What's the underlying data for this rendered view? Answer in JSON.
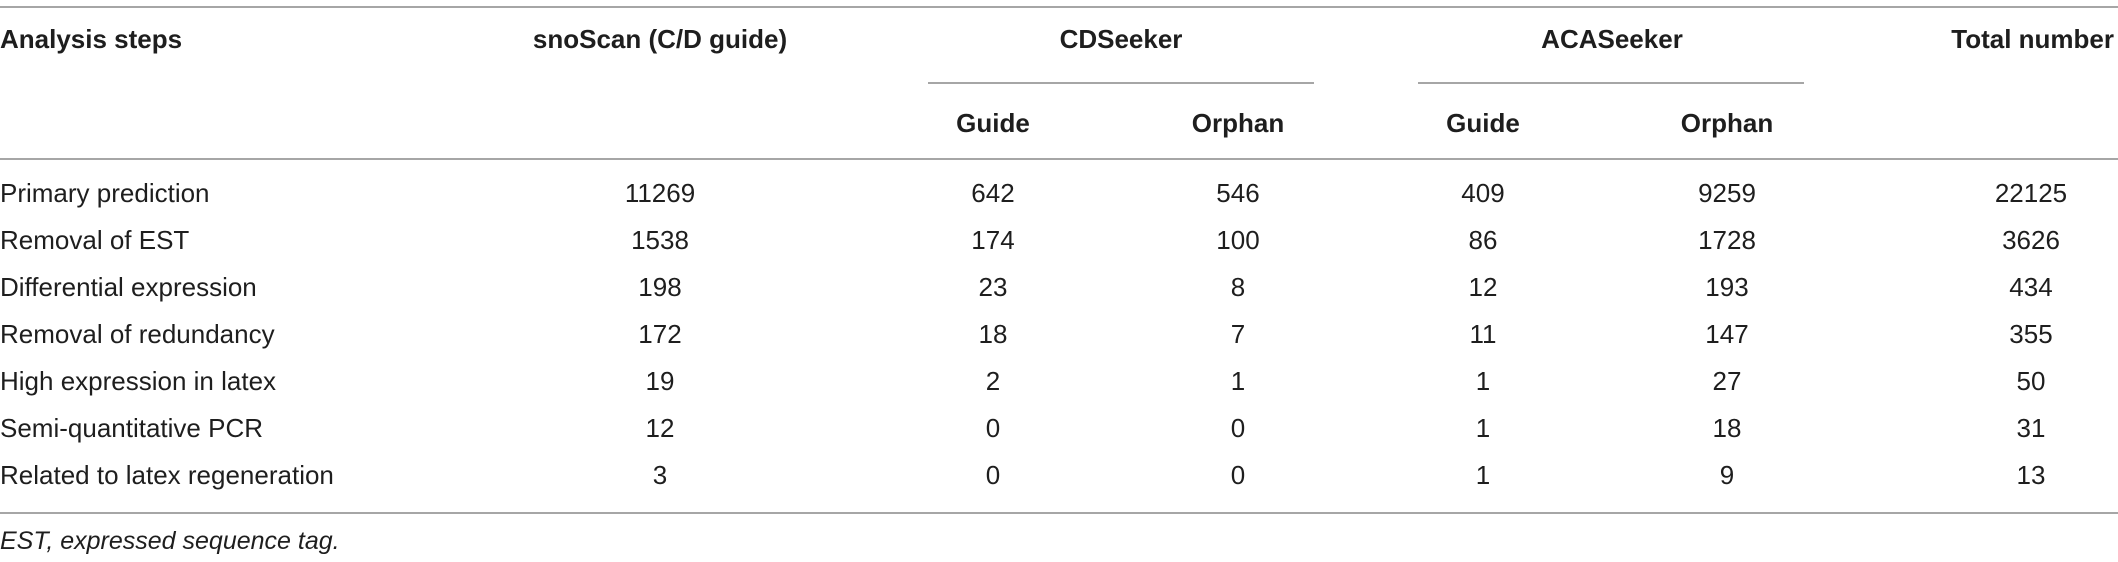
{
  "table": {
    "headers": {
      "analysis_steps": "Analysis steps",
      "snoscan": "snoScan (C/D guide)",
      "cdseeker": "CDSeeker",
      "acaseeker": "ACASeeker",
      "total": "Total number",
      "cd_guide": "Guide",
      "cd_orphan": "Orphan",
      "aca_guide": "Guide",
      "aca_orphan": "Orphan"
    },
    "rows": [
      {
        "step": "Primary prediction",
        "snoscan": "11269",
        "cd_guide": "642",
        "cd_orphan": "546",
        "aca_guide": "409",
        "aca_orphan": "9259",
        "total": "22125"
      },
      {
        "step": "Removal of EST",
        "snoscan": "1538",
        "cd_guide": "174",
        "cd_orphan": "100",
        "aca_guide": "86",
        "aca_orphan": "1728",
        "total": "3626"
      },
      {
        "step": "Differential expression",
        "snoscan": "198",
        "cd_guide": "23",
        "cd_orphan": "8",
        "aca_guide": "12",
        "aca_orphan": "193",
        "total": "434"
      },
      {
        "step": "Removal of redundancy",
        "snoscan": "172",
        "cd_guide": "18",
        "cd_orphan": "7",
        "aca_guide": "11",
        "aca_orphan": "147",
        "total": "355"
      },
      {
        "step": "High expression in latex",
        "snoscan": "19",
        "cd_guide": "2",
        "cd_orphan": "1",
        "aca_guide": "1",
        "aca_orphan": "27",
        "total": "50"
      },
      {
        "step": "Semi-quantitative PCR",
        "snoscan": "12",
        "cd_guide": "0",
        "cd_orphan": "0",
        "aca_guide": "1",
        "aca_orphan": "18",
        "total": "31"
      },
      {
        "step": "Related to latex regeneration",
        "snoscan": "3",
        "cd_guide": "0",
        "cd_orphan": "0",
        "aca_guide": "1",
        "aca_orphan": "9",
        "total": "13"
      }
    ]
  },
  "footnote": "EST, expressed sequence tag."
}
